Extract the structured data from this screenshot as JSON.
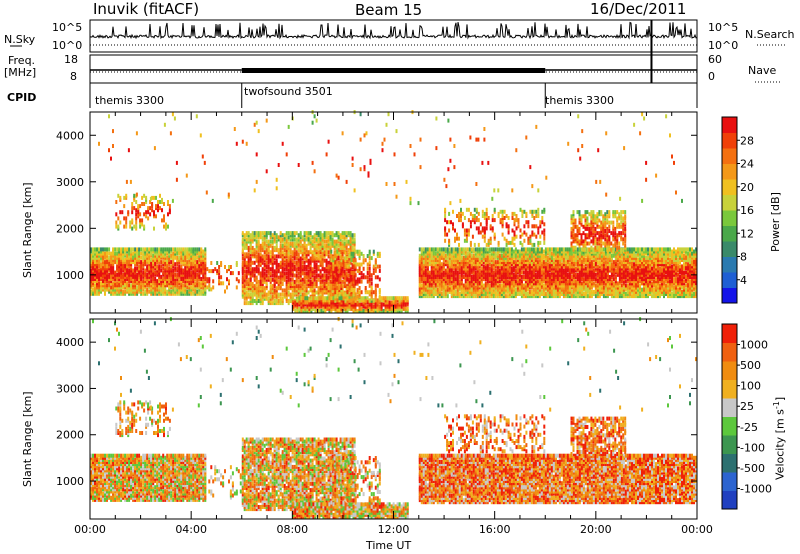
{
  "header": {
    "radar": "Inuvik (fitACF)",
    "beam": "Beam 15",
    "date": "16/Dec/2011"
  },
  "panels": {
    "nsky_label": "N.Sky",
    "nsky_ticks": [
      "10^5",
      "10^0"
    ],
    "nsearch_label": "N.Search",
    "nsearch_ticks": [
      "10^5",
      "10^0"
    ],
    "freq_label": "Freq.",
    "freq_unit": "[MHz]",
    "freq_ticks": [
      "18",
      "8"
    ],
    "nave_label": "Nave",
    "nave_ticks": [
      "60",
      "0"
    ],
    "cpid_label": "CPID",
    "cpid_segments": [
      {
        "name": "themis 3300",
        "start_h": 0,
        "end_h": 6
      },
      {
        "name": "twofsound 3501",
        "start_h": 6,
        "end_h": 18
      },
      {
        "name": "themis 3300",
        "start_h": 18,
        "end_h": 24
      }
    ]
  },
  "chart_data": [
    {
      "type": "heatmap",
      "title": "Power",
      "xlabel": "",
      "ylabel": "Slant Range [km]",
      "x_ticks": [
        "00:00",
        "04:00",
        "08:00",
        "12:00",
        "16:00",
        "20:00",
        "00:00"
      ],
      "xlim_hours": [
        0,
        24
      ],
      "ylim": [
        180,
        4500
      ],
      "y_ticks": [
        1000,
        2000,
        3000,
        4000
      ],
      "colorbar": {
        "label": "Power [dB]",
        "ticks": [
          4,
          8,
          12,
          16,
          20,
          24,
          28
        ],
        "range": [
          0,
          32
        ],
        "colors": [
          "#1414e8",
          "#1e5fd4",
          "#2a7ab0",
          "#3a8a6a",
          "#4aa84a",
          "#7ac83c",
          "#c8d23a",
          "#f0c020",
          "#f49818",
          "#f47010",
          "#f04008",
          "#e81010"
        ]
      },
      "scatter_regions": [
        {
          "start_h": 0,
          "end_h": 4.5,
          "range_min": 600,
          "range_max": 1500,
          "level": "high"
        },
        {
          "start_h": 6,
          "end_h": 10.5,
          "range_min": 300,
          "range_max": 1800,
          "level": "medium"
        },
        {
          "start_h": 8,
          "end_h": 12.5,
          "range_min": 200,
          "range_max": 500,
          "level": "high"
        },
        {
          "start_h": 13,
          "end_h": 24,
          "range_min": 500,
          "range_max": 1500,
          "level": "high"
        },
        {
          "start_h": 19,
          "end_h": 21,
          "range_min": 1500,
          "range_max": 2300,
          "level": "high"
        }
      ]
    },
    {
      "type": "heatmap",
      "title": "Velocity",
      "xlabel": "Time UT",
      "ylabel": "Slant Range [km]",
      "x_ticks": [
        "00:00",
        "04:00",
        "08:00",
        "12:00",
        "16:00",
        "20:00",
        "00:00"
      ],
      "xlim_hours": [
        0,
        24
      ],
      "ylim": [
        180,
        4500
      ],
      "y_ticks": [
        1000,
        2000,
        3000,
        4000
      ],
      "colorbar": {
        "label": "Velocity [m s^-1]",
        "ticks": [
          1000,
          500,
          100,
          25,
          -25,
          -100,
          -500,
          -1000
        ],
        "range": [
          1000,
          -1000
        ],
        "colors": [
          "#2040c0",
          "#2c64d0",
          "#2c7070",
          "#3c9650",
          "#5cc83c",
          "#c8c8c8",
          "#f0b020",
          "#f08c10",
          "#f06010",
          "#f02008"
        ]
      }
    }
  ]
}
